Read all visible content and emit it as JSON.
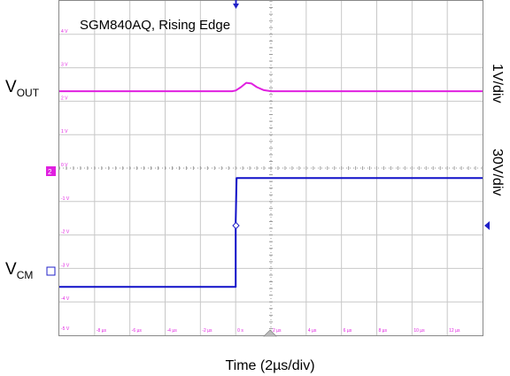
{
  "chart_data": {
    "type": "line",
    "title": "SGM840AQ, Rising Edge",
    "xlabel": "Time (2µs/div)",
    "x_divisions": 12,
    "y_divisions": 10,
    "xlim_us": [
      -10,
      14
    ],
    "channel_scales": [
      {
        "label": "1V/div",
        "color": "#000000"
      },
      {
        "label": "30V/div",
        "color": "#000000"
      }
    ],
    "grid_v_ticks": [
      "4 V",
      "3 V",
      "2 V",
      "1 V",
      "0 V",
      "-1 V",
      "-2 V",
      "-3 V",
      "-4 V",
      "-5 V"
    ],
    "grid_t_ticks": [
      "-8 µs",
      "-6 µs",
      "-4 µs",
      "-2 µs",
      "0 s",
      "2 µs",
      "4 µs",
      "6 µs",
      "8 µs",
      "10 µs",
      "12 µs"
    ],
    "series": [
      {
        "name": "VOUT",
        "label_main": "V",
        "label_sub": "OUT",
        "color": "#e020e0",
        "unit": "div",
        "x_us": [
          -10,
          -0.2,
          0.0,
          0.3,
          0.6,
          0.9,
          1.2,
          1.6,
          2.0,
          14
        ],
        "y_div": [
          2.3,
          2.3,
          2.32,
          2.42,
          2.55,
          2.53,
          2.42,
          2.33,
          2.3,
          2.3
        ]
      },
      {
        "name": "VCM",
        "label_main": "V",
        "label_sub": "CM",
        "color": "#1010c8",
        "unit": "div",
        "x_us": [
          -10,
          0.0,
          0.0,
          0.05,
          14
        ],
        "y_div": [
          -3.55,
          -3.55,
          -1.6,
          -0.3,
          -0.3
        ]
      }
    ],
    "grid": true
  }
}
